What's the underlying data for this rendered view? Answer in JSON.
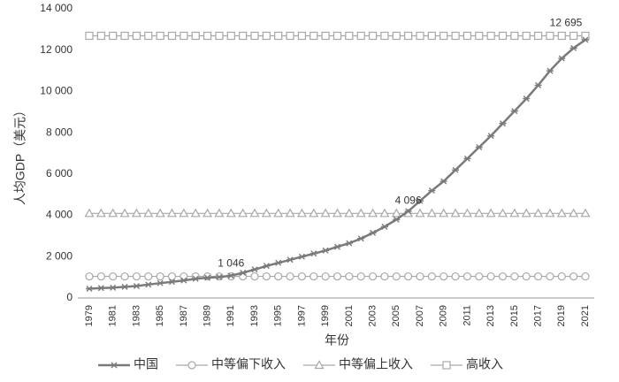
{
  "chart_data": {
    "type": "line",
    "y_label": "人均GDP（美元）",
    "x_label": "年份",
    "categories": [
      "1979",
      null,
      "1981",
      null,
      "1983",
      null,
      "1985",
      null,
      "1987",
      null,
      "1989",
      null,
      "1991",
      null,
      "1993",
      null,
      "1995",
      null,
      "1997",
      null,
      "1999",
      null,
      "2001",
      null,
      "2003",
      null,
      "2005",
      null,
      "2007",
      null,
      "2009",
      null,
      "2011",
      null,
      "2013",
      null,
      "2015",
      null,
      "2017",
      null,
      "2019",
      null,
      "2021"
    ],
    "series": [
      {
        "name": "中国",
        "color": "#7a7a7a",
        "marker": "asterisk",
        "values": [
          450,
          480,
          500,
          540,
          580,
          650,
          720,
          780,
          850,
          930,
          980,
          1010,
          1080,
          1220,
          1380,
          1550,
          1700,
          1850,
          2000,
          2150,
          2300,
          2480,
          2650,
          2880,
          3150,
          3450,
          3800,
          4200,
          4700,
          5200,
          5650,
          6200,
          6750,
          7300,
          7850,
          8450,
          9050,
          9650,
          10300,
          11000,
          11600,
          12100,
          12500
        ]
      },
      {
        "name": "中等偏下收入",
        "color": "#a8a8a8",
        "marker": "circle",
        "values": [
          1046,
          1046,
          1046,
          1046,
          1046,
          1046,
          1046,
          1046,
          1046,
          1046,
          1046,
          1046,
          1046,
          1046,
          1046,
          1046,
          1046,
          1046,
          1046,
          1046,
          1046,
          1046,
          1046,
          1046,
          1046,
          1046,
          1046,
          1046,
          1046,
          1046,
          1046,
          1046,
          1046,
          1046,
          1046,
          1046,
          1046,
          1046,
          1046,
          1046,
          1046,
          1046,
          1046
        ]
      },
      {
        "name": "中等偏上收入",
        "color": "#a8a8a8",
        "marker": "triangle",
        "values": [
          4096,
          4096,
          4096,
          4096,
          4096,
          4096,
          4096,
          4096,
          4096,
          4096,
          4096,
          4096,
          4096,
          4096,
          4096,
          4096,
          4096,
          4096,
          4096,
          4096,
          4096,
          4096,
          4096,
          4096,
          4096,
          4096,
          4096,
          4096,
          4096,
          4096,
          4096,
          4096,
          4096,
          4096,
          4096,
          4096,
          4096,
          4096,
          4096,
          4096,
          4096,
          4096,
          4096
        ]
      },
      {
        "name": "高收入",
        "color": "#a8a8a8",
        "marker": "square",
        "values": [
          12695,
          12695,
          12695,
          12695,
          12695,
          12695,
          12695,
          12695,
          12695,
          12695,
          12695,
          12695,
          12695,
          12695,
          12695,
          12695,
          12695,
          12695,
          12695,
          12695,
          12695,
          12695,
          12695,
          12695,
          12695,
          12695,
          12695,
          12695,
          12695,
          12695,
          12695,
          12695,
          12695,
          12695,
          12695,
          12695,
          12695,
          12695,
          12695,
          12695,
          12695,
          12695,
          12695
        ]
      }
    ],
    "annotations": [
      {
        "value": 1046,
        "label": "1 046"
      },
      {
        "value": 4096,
        "label": "4 096"
      },
      {
        "value": 12695,
        "label": "12 695"
      }
    ],
    "ylim": [
      0,
      14000
    ],
    "yticks": [
      0,
      {
        "value": 2000,
        "label": "2 000"
      },
      {
        "value": 4000,
        "label": "4 000"
      },
      {
        "value": 6000,
        "label": "6 000"
      },
      {
        "value": 8000,
        "label": "8 000"
      },
      {
        "value": 10000,
        "label": "10 000"
      },
      {
        "value": 12000,
        "label": "12 000"
      },
      {
        "value": 14000,
        "label": "14 000"
      }
    ],
    "grid": false,
    "legend": "bottom"
  }
}
